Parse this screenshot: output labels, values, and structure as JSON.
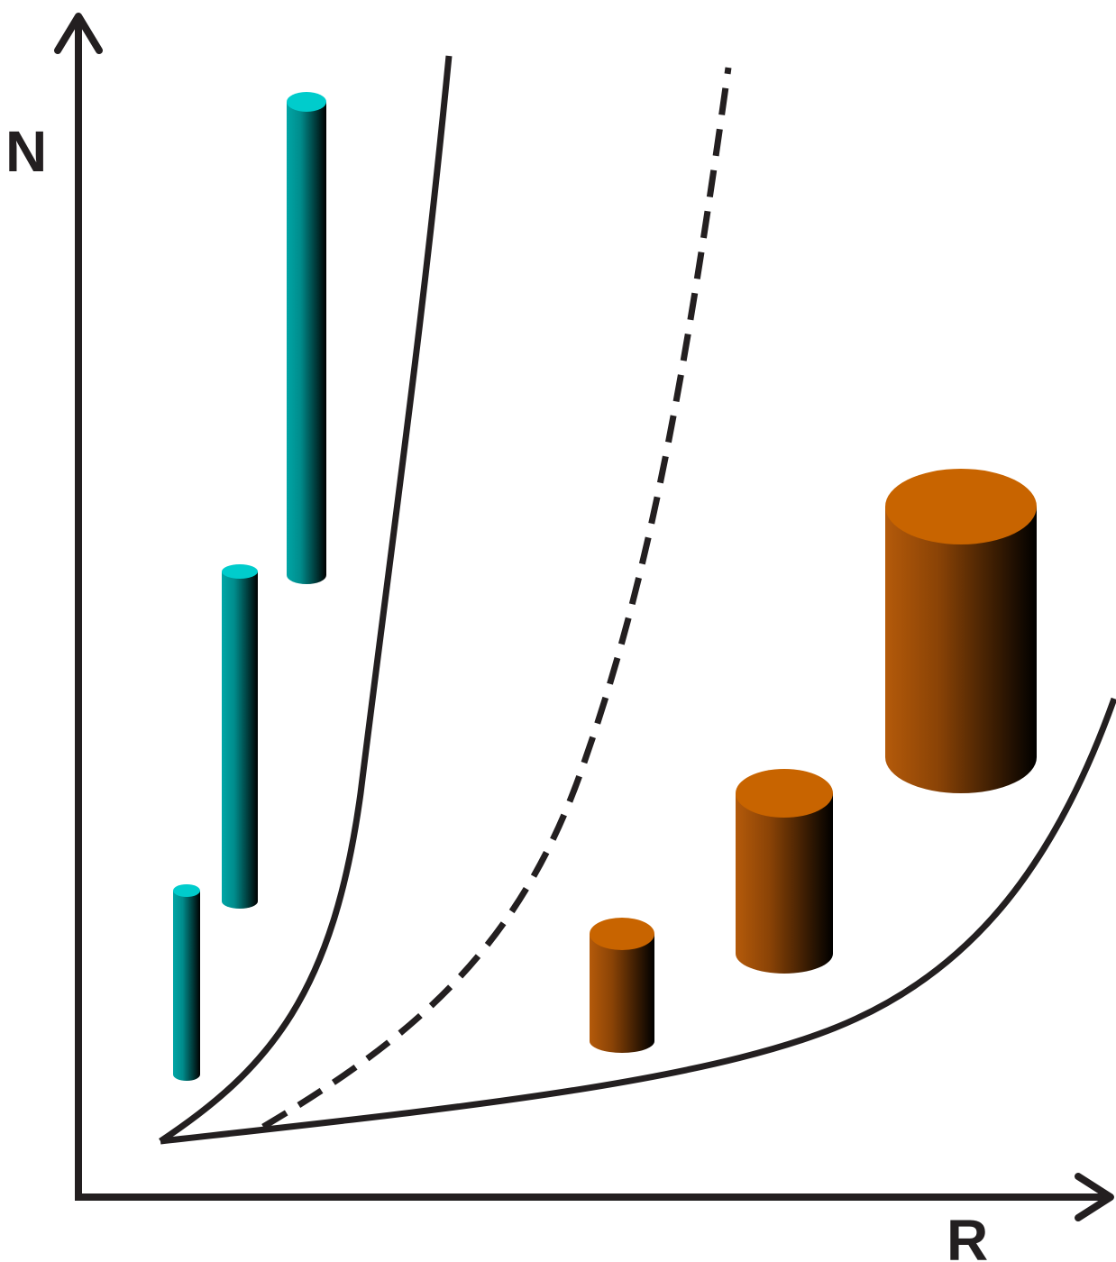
{
  "axes": {
    "y_label": "N",
    "x_label": "R"
  },
  "colors": {
    "axis": "#231f20",
    "curve": "#231f20",
    "thin_cylinder_top": "#00c8c8",
    "thin_cylinder_body_light": "#00a0a0",
    "thick_cylinder_top": "#c86400",
    "thick_cylinder_body_light": "#b05a0a",
    "cylinder_shadow": "#000000"
  },
  "curves": [
    {
      "name": "upper-boundary-curve",
      "style": "solid"
    },
    {
      "name": "middle-dashed-curve",
      "style": "dashed"
    },
    {
      "name": "lower-boundary-curve",
      "style": "solid"
    }
  ],
  "cylinder_groups": [
    {
      "name": "thin-cylinders",
      "color": "teal",
      "count": 3
    },
    {
      "name": "thick-cylinders",
      "color": "orange",
      "count": 3
    }
  ]
}
